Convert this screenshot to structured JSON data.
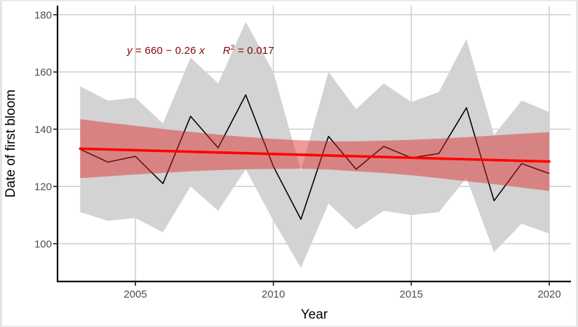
{
  "figure": {
    "kind": "ggplot-style statistical chart",
    "background": "#ffffff"
  },
  "chart_data": {
    "type": "line",
    "title": "",
    "xlabel": "Year",
    "ylabel": "Date of first bloom",
    "grid": true,
    "legend": "none",
    "xlim": [
      2002.2,
      2020.8
    ],
    "ylim": [
      87,
      183
    ],
    "x_ticks": [
      {
        "label": "2005",
        "value": 2005
      },
      {
        "label": "2010",
        "value": 2010
      },
      {
        "label": "2015",
        "value": 2015
      },
      {
        "label": "2020",
        "value": 2020
      }
    ],
    "y_ticks": [
      {
        "label": "180",
        "value": 180
      },
      {
        "label": "160",
        "value": 160
      },
      {
        "label": "140",
        "value": 140
      },
      {
        "label": "120",
        "value": 120
      },
      {
        "label": "100",
        "value": 100
      }
    ],
    "years": [
      2003,
      2004,
      2005,
      2006,
      2007,
      2008,
      2009,
      2010,
      2011,
      2012,
      2013,
      2014,
      2015,
      2016,
      2017,
      2018,
      2019,
      2020
    ],
    "series": [
      {
        "name": "observed_first_bloom_line",
        "color": "#000000",
        "values": [
          133,
          128.5,
          130.5,
          121,
          144.5,
          133.5,
          152,
          127,
          108.5,
          137.5,
          126,
          134,
          130,
          131.5,
          147.5,
          115,
          128,
          124.5
        ]
      },
      {
        "name": "gray_ribbon_upper",
        "color": "#d3d3d3",
        "values": [
          155,
          150,
          151,
          142,
          165,
          156,
          177.5,
          160,
          125.5,
          160,
          147,
          156,
          149.5,
          153,
          171.5,
          138,
          150,
          146
        ]
      },
      {
        "name": "gray_ribbon_lower",
        "color": "#d3d3d3",
        "values": [
          111,
          108,
          109,
          104,
          120,
          111.5,
          126,
          108,
          91.5,
          114,
          105,
          111.5,
          110,
          111,
          123,
          97,
          107,
          103.5
        ]
      },
      {
        "name": "regression_ci_upper",
        "color": "rgba(220,40,40,0.47)",
        "values": [
          143.5,
          142.3,
          141.2,
          140.1,
          139.1,
          138.1,
          137.3,
          136.6,
          136.1,
          135.8,
          135.8,
          136,
          136.3,
          136.7,
          137.2,
          137.8,
          138.4,
          139
        ]
      },
      {
        "name": "regression_ci_lower",
        "color": "rgba(220,40,40,0.47)",
        "values": [
          122.9,
          123.5,
          124.2,
          124.7,
          125.3,
          125.7,
          126,
          126.1,
          126.2,
          125.9,
          125.3,
          124.7,
          123.9,
          122.9,
          121.8,
          120.8,
          119.6,
          118.4
        ]
      }
    ],
    "regression": {
      "equation_text": "y = 660 − 0.26 x",
      "r_squared_text": "R² = 0.017",
      "intercept": 660,
      "slope": -0.26,
      "r_squared": 0.017,
      "line_start": {
        "year": 2003,
        "value": 133.2
      },
      "line_end": {
        "year": 2020,
        "value": 128.7
      },
      "color": "#ff0000"
    },
    "annotation": {
      "eq_y": "y",
      "eq_body": " = 660 − 0.26 ",
      "eq_x": "x",
      "r2_base": "R",
      "r2_sup": "2",
      "r2_rest": " = 0.017",
      "color": "#8b0000"
    },
    "style": {
      "grid_color": "#cdcdcd",
      "axis_color": "#000000",
      "tick_color": "#222222",
      "tick_label_color": "#4d4d4d",
      "axis_title_color": "#000000",
      "gray_band_fill": "#d3d3d3",
      "red_band_fill": "rgba(220,40,40,0.47)",
      "red_line_color": "#ff0000",
      "black_line_color": "#000000"
    }
  }
}
